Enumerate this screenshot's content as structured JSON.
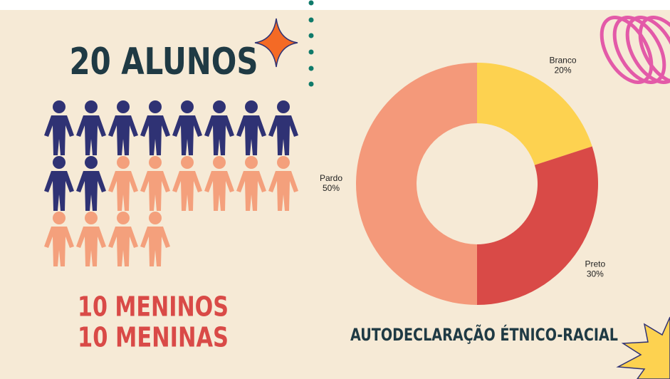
{
  "chart_data": [
    {
      "type": "pictograph",
      "title": "20 ALUNOS",
      "values": [
        10,
        10
      ],
      "value_labels": [
        "10 MENINOS",
        "10 MENINAS"
      ],
      "colors": [
        "#2f3274",
        "#f4a07c"
      ]
    },
    {
      "type": "pie",
      "title": "AUTODECLARAÇÃO ÉTNICO-RACIAL",
      "categories": [
        "Branco",
        "Preto",
        "Pardo"
      ],
      "values": [
        20,
        30,
        50
      ],
      "value_labels": [
        "20%",
        "30%",
        "50%"
      ],
      "colors": [
        "#fdd250",
        "#d94a47",
        "#f4997a"
      ],
      "donut": true
    }
  ]
}
